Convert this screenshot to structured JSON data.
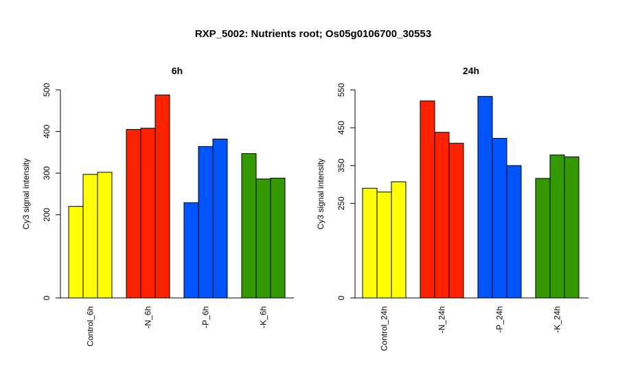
{
  "title": "RXP_5002: Nutrients root; Os05g0106700_30553",
  "chart_data": [
    {
      "type": "bar",
      "title": "6h",
      "ylabel": "Cy3 signal intensity",
      "ylim": [
        0,
        500
      ],
      "yticks": [
        0,
        200,
        300,
        400,
        500
      ],
      "categories": [
        "Control_6h",
        "-N_6h",
        "-P_6h",
        "-K_6h"
      ],
      "colors": [
        "#ffff00",
        "#ff2200",
        "#0055ff",
        "#339900"
      ],
      "values": [
        [
          220,
          297,
          302
        ],
        [
          405,
          408,
          488
        ],
        [
          229,
          364,
          382
        ],
        [
          347,
          286,
          288
        ]
      ]
    },
    {
      "type": "bar",
      "title": "24h",
      "ylabel": "Cy3 signal intensity",
      "ylim": [
        0,
        550
      ],
      "yticks": [
        0,
        250,
        350,
        450,
        550
      ],
      "categories": [
        "Control_24h",
        "-N_24h",
        "-P_24h",
        "-K_24h"
      ],
      "colors": [
        "#ffff00",
        "#ff2200",
        "#0055ff",
        "#339900"
      ],
      "values": [
        [
          290,
          280,
          307
        ],
        [
          521,
          438,
          409
        ],
        [
          533,
          422,
          350
        ],
        [
          316,
          378,
          373
        ]
      ]
    }
  ]
}
